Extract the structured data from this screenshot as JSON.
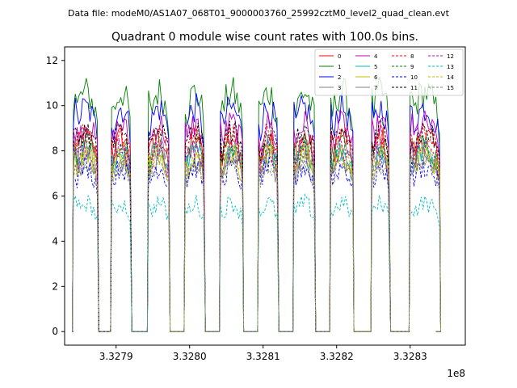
{
  "chart_data": {
    "type": "line",
    "suptitle": "Data file: modeM0/AS1A07_068T01_9000003760_25992cztM0_level2_quad_clean.evt",
    "title": "Quadrant 0 module wise count rates with 100.0s bins.",
    "xlabel": "",
    "ylabel": "",
    "x_offset_label": "1e8",
    "xlim": [
      3.32783,
      3.328375
    ],
    "ylim": [
      -0.6,
      12.6
    ],
    "xticks": [
      3.3279,
      3.328,
      3.3281,
      3.3282,
      3.3283
    ],
    "xtick_labels": [
      "3.3279",
      "3.3280",
      "3.3281",
      "3.3282",
      "3.3283"
    ],
    "yticks": [
      0,
      2,
      4,
      6,
      8,
      10,
      12
    ],
    "ytick_labels": [
      "0",
      "2",
      "4",
      "6",
      "8",
      "10",
      "12"
    ],
    "grid": false,
    "legend_position": "top-right",
    "orbit_segments": [
      [
        3.327842,
        3.327875
      ],
      [
        3.327894,
        3.32792
      ],
      [
        3.327944,
        3.327972
      ],
      [
        3.327994,
        3.32802
      ],
      [
        3.328042,
        3.328072
      ],
      [
        3.328094,
        3.32812
      ],
      [
        3.328142,
        3.32817
      ],
      [
        3.328192,
        3.328222
      ],
      [
        3.328248,
        3.328272
      ],
      [
        3.3283,
        3.32834
      ]
    ],
    "series": [
      {
        "name": "0",
        "color": "#ff0000",
        "style": "solid",
        "mean": 8.6
      },
      {
        "name": "1",
        "color": "#008000",
        "style": "solid",
        "mean": 10.6
      },
      {
        "name": "2",
        "color": "#0000ff",
        "style": "solid",
        "mean": 9.9
      },
      {
        "name": "3",
        "color": "#808080",
        "style": "solid",
        "mean": 8.2
      },
      {
        "name": "4",
        "color": "#bf00bf",
        "style": "solid",
        "mean": 9.2
      },
      {
        "name": "5",
        "color": "#00bfbf",
        "style": "solid",
        "mean": 8.0
      },
      {
        "name": "6",
        "color": "#bfbf00",
        "style": "solid",
        "mean": 7.9
      },
      {
        "name": "7",
        "color": "#808080",
        "style": "solid",
        "mean": 7.6
      },
      {
        "name": "8",
        "color": "#ff0000",
        "style": "dashed",
        "mean": 8.7
      },
      {
        "name": "9",
        "color": "#008000",
        "style": "dashed",
        "mean": 8.3
      },
      {
        "name": "10",
        "color": "#0000ff",
        "style": "dashed",
        "mean": 7.3
      },
      {
        "name": "11",
        "color": "#000000",
        "style": "dashed",
        "mean": 8.9
      },
      {
        "name": "12",
        "color": "#bf00bf",
        "style": "dashed",
        "mean": 8.1
      },
      {
        "name": "13",
        "color": "#00bfbf",
        "style": "dashed",
        "mean": 5.7
      },
      {
        "name": "14",
        "color": "#bfbf00",
        "style": "dashed",
        "mean": 7.8
      },
      {
        "name": "15",
        "color": "#808080",
        "style": "dashed",
        "mean": 7.5
      }
    ]
  }
}
